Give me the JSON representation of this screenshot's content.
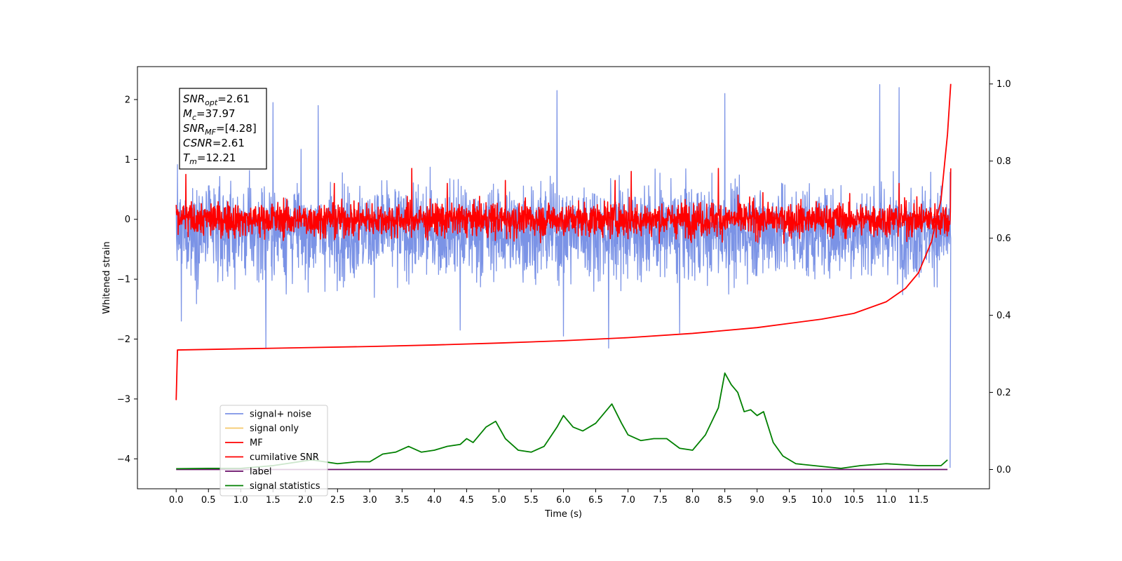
{
  "chart_data": {
    "type": "line",
    "xlabel": "Time (s)",
    "ylabel": "Whitened strain",
    "xlim": [
      -0.6,
      12.6
    ],
    "ylim": [
      -4.5,
      2.55
    ],
    "y2lim": [
      -0.05,
      1.045
    ],
    "x_ticks": [
      0.0,
      0.5,
      1.0,
      1.5,
      2.0,
      2.5,
      3.0,
      3.5,
      4.0,
      4.5,
      5.0,
      5.5,
      6.0,
      6.5,
      7.0,
      7.5,
      8.0,
      8.5,
      9.0,
      9.5,
      10.0,
      10.5,
      11.0,
      11.5
    ],
    "x_tick_labels": [
      "0.0",
      "0.5",
      "1.0",
      "1.5",
      "2.0",
      "2.5",
      "3.0",
      "3.5",
      "4.0",
      "4.5",
      "5.0",
      "5.5",
      "6.0",
      "6.5",
      "7.0",
      "7.5",
      "8.0",
      "8.5",
      "9.0",
      "9.5",
      "10.0",
      "10.5",
      "11.0",
      "11.5"
    ],
    "y_ticks": [
      2,
      1,
      0,
      -1,
      -2,
      -3,
      -4
    ],
    "y_tick_labels": [
      "2",
      "1",
      "0",
      "−1",
      "−2",
      "−3",
      "−4"
    ],
    "y2_ticks": [
      1.0,
      0.8,
      0.6,
      0.4,
      0.2,
      0.0
    ],
    "y2_tick_labels": [
      "1.0",
      "0.8",
      "0.6",
      "0.4",
      "0.2",
      "0.0"
    ],
    "legend": {
      "placement": "lower-left",
      "entries": [
        {
          "name": "signal+ noise",
          "color": "#7b93e6"
        },
        {
          "name": "signal only",
          "color": "#f5c96a"
        },
        {
          "name": "MF",
          "color": "#ff0000"
        },
        {
          "name": "cumilative SNR",
          "color": "#ff0000"
        },
        {
          "name": "label",
          "color": "#6a0f6a"
        },
        {
          "name": "signal statistics",
          "color": "#008000"
        }
      ]
    },
    "annotation": {
      "lines": [
        {
          "label": "SNR",
          "sub": "opt",
          "value": "=2.61"
        },
        {
          "label": "M",
          "sub": "c",
          "value": "=37.97"
        },
        {
          "label": "SNR",
          "sub": "MF",
          "value": "=[4.28]"
        },
        {
          "label": "CSNR",
          "sub": "",
          "value": "=2.61"
        },
        {
          "label": "T",
          "sub": "m",
          "value": "=12.21"
        }
      ]
    },
    "series": [
      {
        "name": "signal+ noise",
        "axis": "left",
        "style": "noise",
        "x_range": [
          0.0,
          12.0
        ],
        "y_mean": -0.2,
        "y_envelope": [
          -2.15,
          2.25
        ],
        "extremes": [
          {
            "x": 0.08,
            "y": -1.7
          },
          {
            "x": 1.39,
            "y": -2.15
          },
          {
            "x": 1.5,
            "y": 1.95
          },
          {
            "x": 2.2,
            "y": 1.9
          },
          {
            "x": 4.4,
            "y": -1.85
          },
          {
            "x": 5.9,
            "y": 2.15
          },
          {
            "x": 6.0,
            "y": -1.95
          },
          {
            "x": 6.7,
            "y": -2.15
          },
          {
            "x": 7.8,
            "y": -1.9
          },
          {
            "x": 8.5,
            "y": 2.1
          },
          {
            "x": 10.9,
            "y": 2.25
          },
          {
            "x": 11.2,
            "y": 2.2
          }
        ],
        "end_drop": {
          "x": 11.99,
          "y": -4.15
        }
      },
      {
        "name": "MF",
        "axis": "left",
        "style": "noise",
        "x_range": [
          0.0,
          12.0
        ],
        "y_mean": 0.0,
        "y_envelope": [
          -0.4,
          0.85
        ],
        "peaks": [
          {
            "x": 0.15,
            "y": 0.75
          },
          {
            "x": 2.45,
            "y": 0.6
          },
          {
            "x": 3.65,
            "y": 0.85
          },
          {
            "x": 4.2,
            "y": 0.6
          },
          {
            "x": 5.1,
            "y": 0.65
          },
          {
            "x": 6.8,
            "y": 0.65
          },
          {
            "x": 7.05,
            "y": 0.8
          },
          {
            "x": 8.4,
            "y": 0.85
          },
          {
            "x": 11.2,
            "y": 0.6
          },
          {
            "x": 12.0,
            "y": 0.95
          }
        ]
      },
      {
        "name": "cumilative SNR",
        "axis": "right",
        "points": [
          [
            0.0,
            0.18
          ],
          [
            0.02,
            0.31
          ],
          [
            1.0,
            0.313
          ],
          [
            2.0,
            0.316
          ],
          [
            3.0,
            0.319
          ],
          [
            4.0,
            0.323
          ],
          [
            5.0,
            0.328
          ],
          [
            6.0,
            0.334
          ],
          [
            7.0,
            0.342
          ],
          [
            8.0,
            0.353
          ],
          [
            9.0,
            0.368
          ],
          [
            10.0,
            0.39
          ],
          [
            10.5,
            0.405
          ],
          [
            11.0,
            0.435
          ],
          [
            11.3,
            0.47
          ],
          [
            11.5,
            0.51
          ],
          [
            11.7,
            0.59
          ],
          [
            11.85,
            0.7
          ],
          [
            11.95,
            0.87
          ],
          [
            12.0,
            1.0
          ]
        ]
      },
      {
        "name": "label",
        "axis": "right",
        "points": [
          [
            0.0,
            0.0
          ],
          [
            11.95,
            0.0
          ]
        ]
      },
      {
        "name": "signal statistics",
        "axis": "right",
        "points": [
          [
            0.0,
            0.002
          ],
          [
            0.5,
            0.003
          ],
          [
            1.0,
            0.003
          ],
          [
            1.5,
            0.01
          ],
          [
            1.9,
            0.02
          ],
          [
            2.1,
            0.025
          ],
          [
            2.5,
            0.015
          ],
          [
            2.8,
            0.02
          ],
          [
            3.0,
            0.02
          ],
          [
            3.2,
            0.04
          ],
          [
            3.4,
            0.045
          ],
          [
            3.6,
            0.06
          ],
          [
            3.8,
            0.045
          ],
          [
            4.0,
            0.05
          ],
          [
            4.2,
            0.06
          ],
          [
            4.4,
            0.065
          ],
          [
            4.5,
            0.08
          ],
          [
            4.6,
            0.07
          ],
          [
            4.8,
            0.11
          ],
          [
            4.95,
            0.125
          ],
          [
            5.1,
            0.08
          ],
          [
            5.3,
            0.05
          ],
          [
            5.5,
            0.045
          ],
          [
            5.7,
            0.06
          ],
          [
            5.9,
            0.11
          ],
          [
            6.0,
            0.14
          ],
          [
            6.15,
            0.11
          ],
          [
            6.3,
            0.1
          ],
          [
            6.5,
            0.12
          ],
          [
            6.65,
            0.15
          ],
          [
            6.75,
            0.17
          ],
          [
            6.9,
            0.12
          ],
          [
            7.0,
            0.09
          ],
          [
            7.2,
            0.075
          ],
          [
            7.4,
            0.08
          ],
          [
            7.6,
            0.08
          ],
          [
            7.8,
            0.055
          ],
          [
            8.0,
            0.05
          ],
          [
            8.2,
            0.09
          ],
          [
            8.4,
            0.16
          ],
          [
            8.5,
            0.25
          ],
          [
            8.6,
            0.22
          ],
          [
            8.7,
            0.2
          ],
          [
            8.8,
            0.15
          ],
          [
            8.9,
            0.155
          ],
          [
            9.0,
            0.14
          ],
          [
            9.1,
            0.15
          ],
          [
            9.25,
            0.07
          ],
          [
            9.4,
            0.035
          ],
          [
            9.6,
            0.015
          ],
          [
            10.0,
            0.008
          ],
          [
            10.3,
            0.003
          ],
          [
            10.6,
            0.01
          ],
          [
            11.0,
            0.015
          ],
          [
            11.5,
            0.01
          ],
          [
            11.85,
            0.01
          ],
          [
            11.95,
            0.025
          ]
        ]
      }
    ]
  }
}
